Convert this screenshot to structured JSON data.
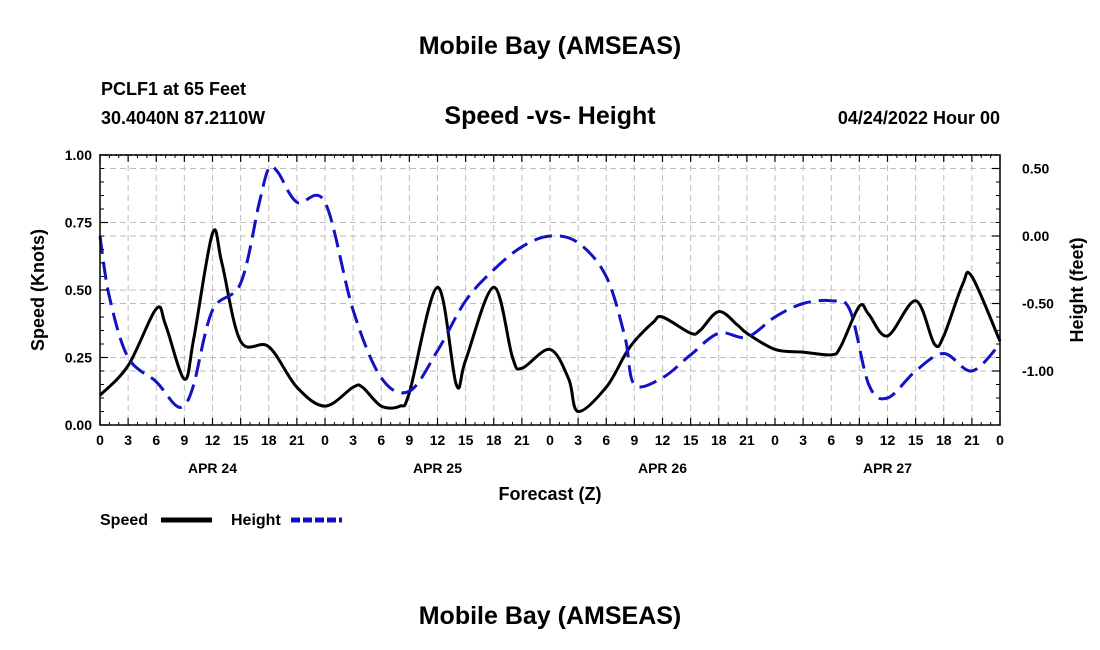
{
  "header": {
    "title": "Mobile Bay (AMSEAS)",
    "station": "PCLF1 at 65 Feet",
    "location": "30.4040N  87.2110W",
    "datetime": "04/24/2022 Hour 00",
    "footer_title": "Mobile Bay (AMSEAS)"
  },
  "chart_data": {
    "type": "line",
    "title": "Speed -vs- Height",
    "xlabel": "Forecast (Z)",
    "ylabel_left": "Speed (Knots)",
    "ylabel_right": "Height (feet)",
    "xlim": [
      0,
      96
    ],
    "ylim_left": [
      0,
      1.0
    ],
    "ylim_right": [
      -1.4,
      0.6
    ],
    "grid": true,
    "legend_position": "bottom-left",
    "x_ticks": [
      0,
      3,
      6,
      9,
      12,
      15,
      18,
      21,
      24,
      27,
      30,
      33,
      36,
      39,
      42,
      45,
      48,
      51,
      54,
      57,
      60,
      63,
      66,
      69,
      72,
      75,
      78,
      81,
      84,
      87,
      90,
      93,
      96
    ],
    "x_tick_labels": [
      "0",
      "3",
      "6",
      "9",
      "12",
      "15",
      "18",
      "21",
      "0",
      "3",
      "6",
      "9",
      "12",
      "15",
      "18",
      "21",
      "0",
      "3",
      "6",
      "9",
      "12",
      "15",
      "18",
      "21",
      "0",
      "3",
      "6",
      "9",
      "12",
      "15",
      "18",
      "21",
      "0"
    ],
    "date_labels": [
      {
        "label": "APR 24",
        "hour": 12
      },
      {
        "label": "APR 25",
        "hour": 36
      },
      {
        "label": "APR 26",
        "hour": 60
      },
      {
        "label": "APR 27",
        "hour": 84
      }
    ],
    "y_left_ticks": [
      0.0,
      0.25,
      0.5,
      0.75,
      1.0
    ],
    "y_left_tick_labels": [
      "0.00",
      "0.25",
      "0.50",
      "0.75",
      "1.00"
    ],
    "y_right_ticks": [
      0.5,
      0.0,
      -0.5,
      -1.0
    ],
    "y_right_tick_labels": [
      "0.50",
      "0.00",
      "-0.50",
      "-1.00"
    ],
    "series": [
      {
        "name": "Speed",
        "axis": "left",
        "color": "#000000",
        "style": "solid",
        "x": [
          0,
          3,
          6,
          7,
          9,
          10,
          12,
          13,
          15,
          18,
          21,
          24,
          27,
          28,
          30,
          32,
          33,
          36,
          38,
          39,
          42,
          44,
          45,
          48,
          50,
          51,
          54,
          56,
          57,
          59,
          60,
          63,
          64,
          66,
          68,
          69,
          72,
          75,
          78,
          79,
          81,
          82,
          84,
          87,
          89,
          90,
          92,
          93,
          96
        ],
        "values": [
          0.11,
          0.22,
          0.43,
          0.37,
          0.17,
          0.32,
          0.71,
          0.6,
          0.31,
          0.29,
          0.14,
          0.07,
          0.14,
          0.14,
          0.07,
          0.07,
          0.12,
          0.51,
          0.15,
          0.24,
          0.51,
          0.25,
          0.21,
          0.28,
          0.17,
          0.05,
          0.14,
          0.26,
          0.31,
          0.38,
          0.4,
          0.34,
          0.35,
          0.42,
          0.37,
          0.34,
          0.28,
          0.27,
          0.26,
          0.29,
          0.44,
          0.41,
          0.33,
          0.46,
          0.3,
          0.33,
          0.52,
          0.55,
          0.31
        ]
      },
      {
        "name": "Height",
        "axis": "right",
        "color": "#1212c4",
        "style": "dashed",
        "x": [
          0,
          1,
          3,
          6,
          8,
          9,
          10,
          12,
          15,
          17,
          18,
          19,
          21,
          24,
          27,
          30,
          33,
          36,
          39,
          42,
          45,
          48,
          51,
          54,
          56,
          57,
          60,
          63,
          66,
          69,
          72,
          75,
          78,
          80,
          82,
          84,
          87,
          90,
          93,
          96
        ],
        "values": [
          0.0,
          -0.45,
          -0.9,
          -1.08,
          -1.25,
          -1.25,
          -1.1,
          -0.55,
          -0.35,
          0.25,
          0.5,
          0.47,
          0.25,
          0.25,
          -0.55,
          -1.05,
          -1.15,
          -0.85,
          -0.48,
          -0.25,
          -0.08,
          0.0,
          -0.05,
          -0.3,
          -0.75,
          -1.1,
          -1.05,
          -0.88,
          -0.72,
          -0.75,
          -0.6,
          -0.5,
          -0.48,
          -0.55,
          -1.1,
          -1.2,
          -1.0,
          -0.87,
          -1.0,
          -0.8
        ]
      }
    ]
  }
}
